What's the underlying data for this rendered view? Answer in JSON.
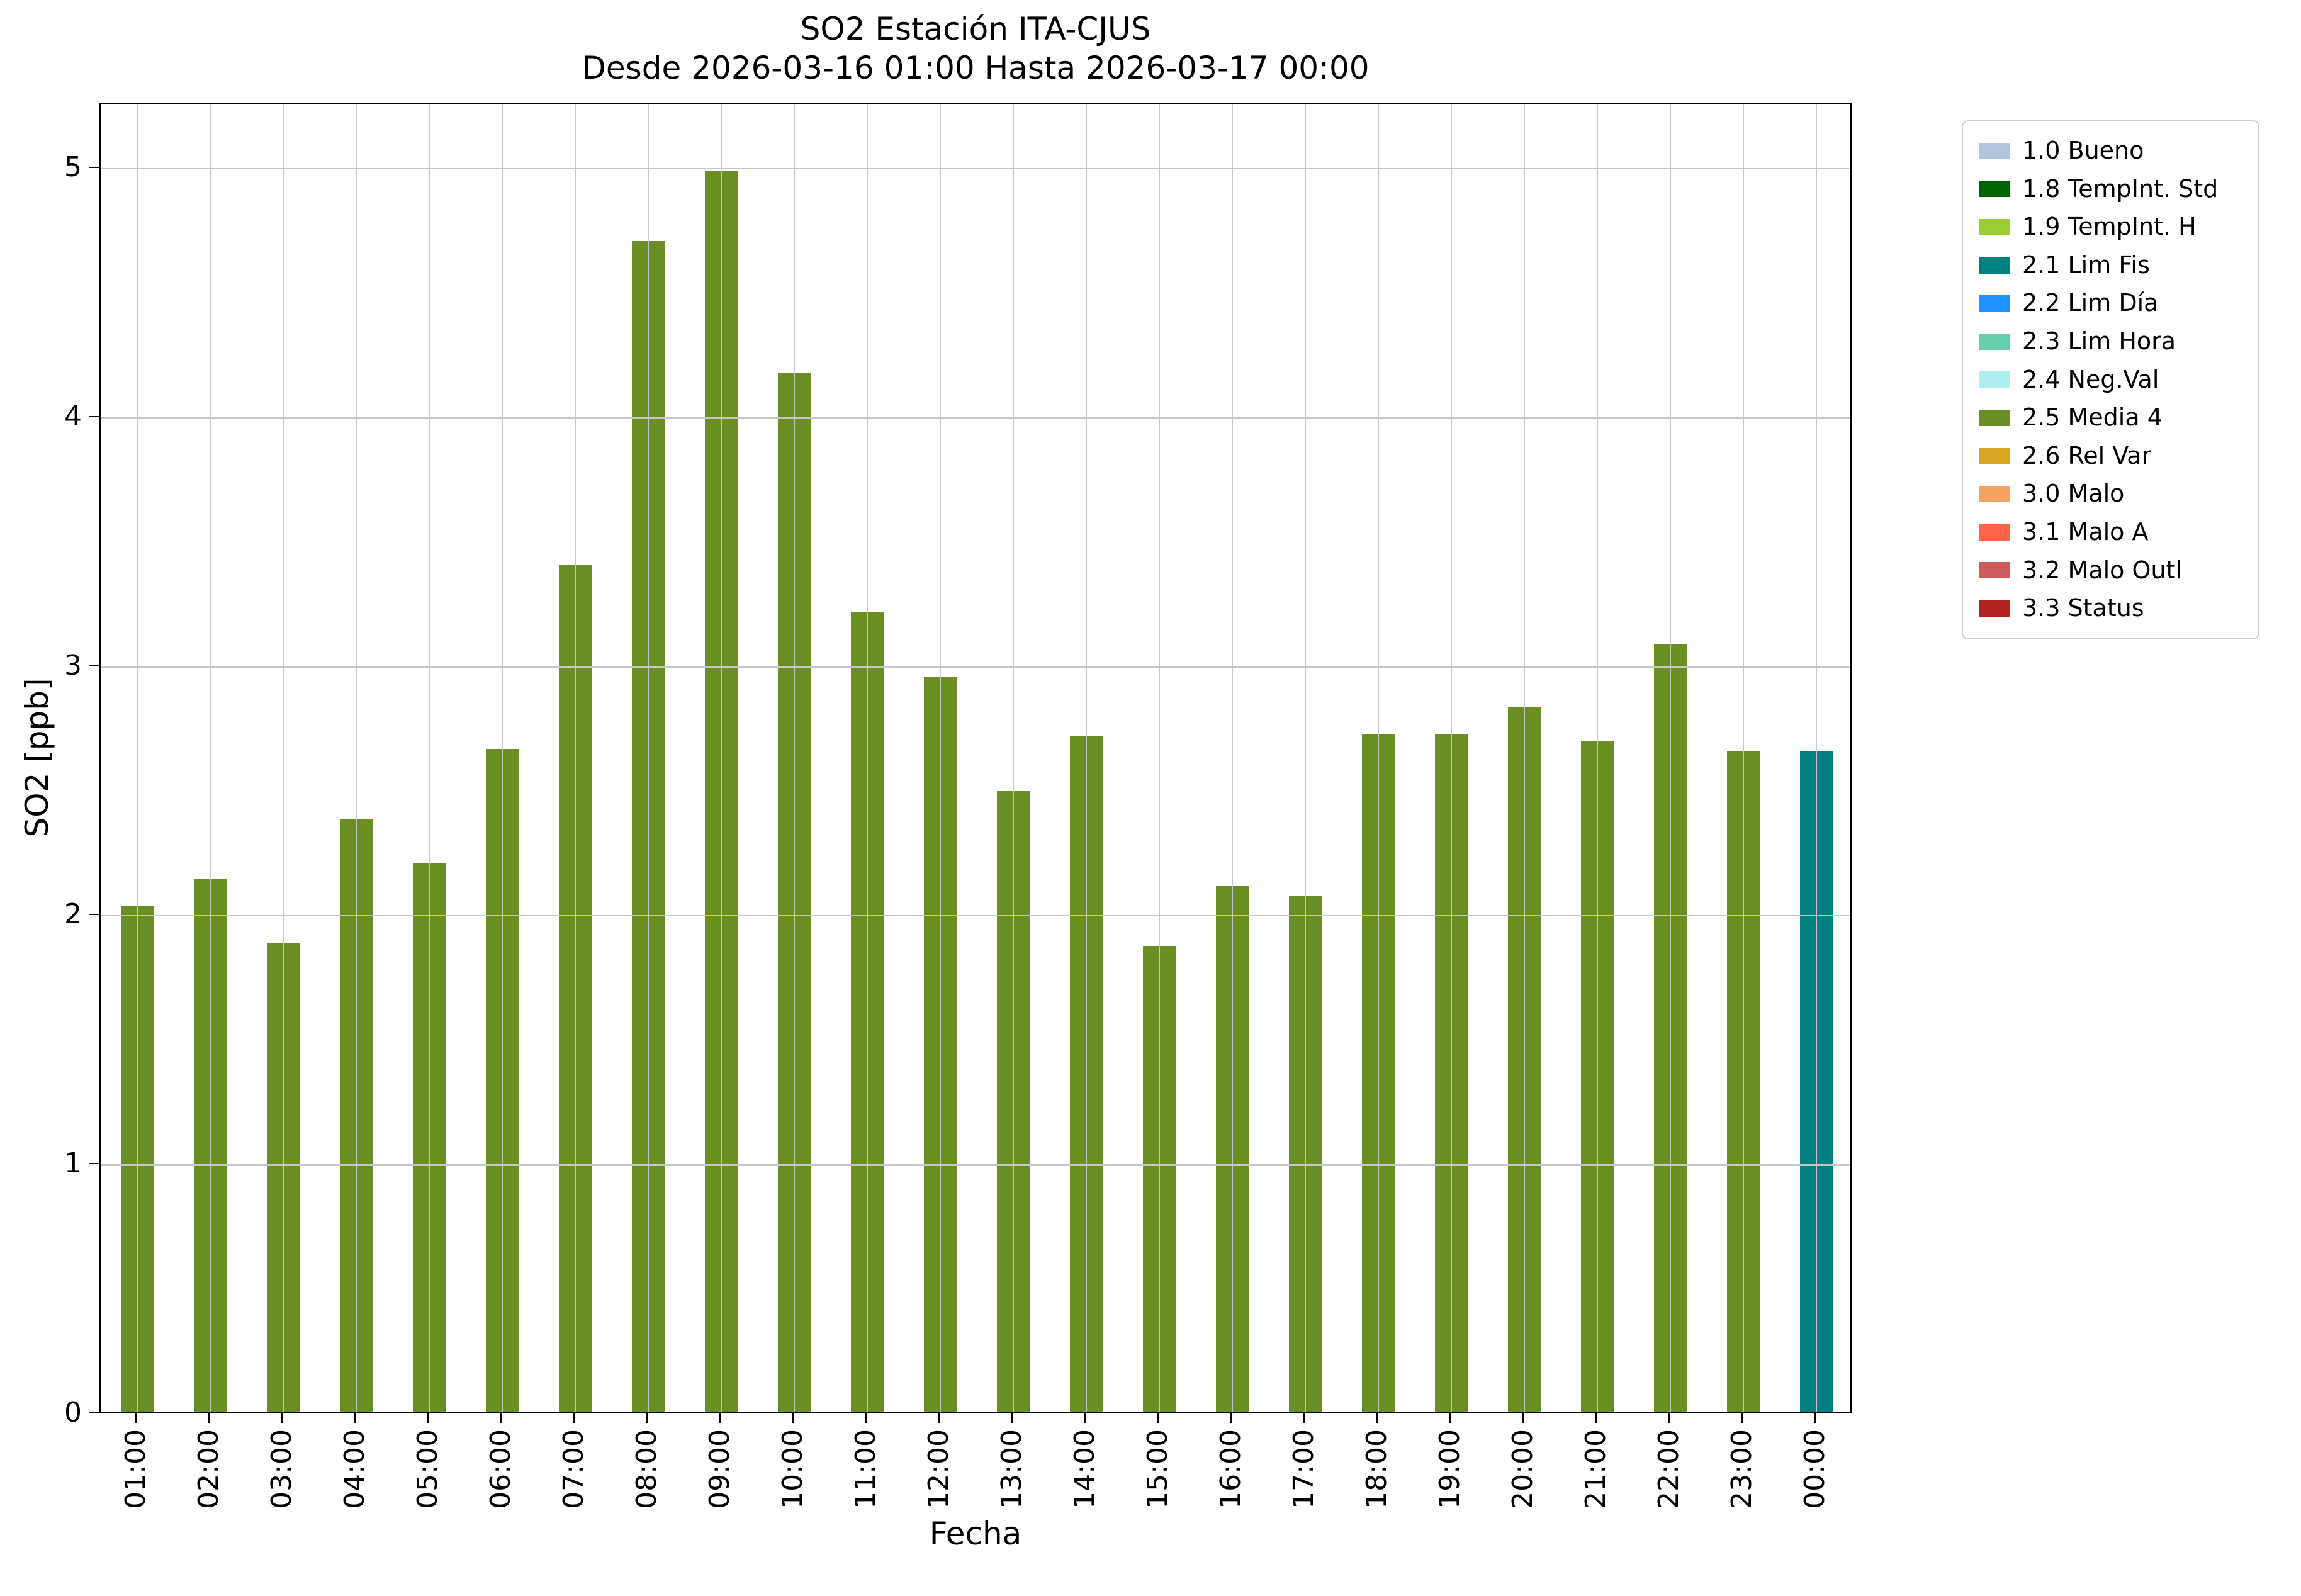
{
  "chart_data": {
    "type": "bar",
    "title": "SO2 Estación ITA-CJUS",
    "subtitle": "Desde 2026-03-16 01:00 Hasta 2026-03-17 00:00",
    "xlabel": "Fecha",
    "ylabel": "SO2 [ppb]",
    "ylim": [
      0,
      5.26
    ],
    "yticks": [
      0,
      1,
      2,
      3,
      4,
      5
    ],
    "grid": true,
    "categories": [
      "01:00",
      "02:00",
      "03:00",
      "04:00",
      "05:00",
      "06:00",
      "07:00",
      "08:00",
      "09:00",
      "10:00",
      "11:00",
      "12:00",
      "13:00",
      "14:00",
      "15:00",
      "16:00",
      "17:00",
      "18:00",
      "19:00",
      "20:00",
      "21:00",
      "22:00",
      "23:00",
      "00:00"
    ],
    "values": [
      2.03,
      2.14,
      1.88,
      2.38,
      2.2,
      2.66,
      3.4,
      4.7,
      4.98,
      4.17,
      3.21,
      2.95,
      2.49,
      2.71,
      1.87,
      2.11,
      2.07,
      2.72,
      2.72,
      2.83,
      2.69,
      3.08,
      2.65,
      2.65
    ],
    "bar_flags": [
      "2.5 Media 4",
      "2.5 Media 4",
      "2.5 Media 4",
      "2.5 Media 4",
      "2.5 Media 4",
      "2.5 Media 4",
      "2.5 Media 4",
      "2.5 Media 4",
      "2.5 Media 4",
      "2.5 Media 4",
      "2.5 Media 4",
      "2.5 Media 4",
      "2.5 Media 4",
      "2.5 Media 4",
      "2.5 Media 4",
      "2.5 Media 4",
      "2.5 Media 4",
      "2.5 Media 4",
      "2.5 Media 4",
      "2.5 Media 4",
      "2.5 Media 4",
      "2.5 Media 4",
      "2.5 Media 4",
      "2.1 Lim Fis"
    ],
    "flag_colors": {
      "2.5 Media 4": "#6b8e23",
      "2.1 Lim Fis": "#008080"
    },
    "colors": {
      "grid": "#c6c6c6",
      "spine": "#000000"
    },
    "legend": {
      "position": "outside-top-right",
      "entries": [
        {
          "label": "1.0 Bueno",
          "color": "#b0c4de"
        },
        {
          "label": "1.8 TempInt. Std",
          "color": "#006400"
        },
        {
          "label": "1.9 TempInt. H",
          "color": "#9acd32"
        },
        {
          "label": "2.1 Lim Fis",
          "color": "#008080"
        },
        {
          "label": "2.2 Lim Día",
          "color": "#1e90ff"
        },
        {
          "label": "2.3 Lim Hora",
          "color": "#66cdaa"
        },
        {
          "label": "2.4 Neg.Val",
          "color": "#afeeee"
        },
        {
          "label": "2.5 Media 4",
          "color": "#6b8e23"
        },
        {
          "label": "2.6 Rel Var",
          "color": "#daa520"
        },
        {
          "label": "3.0 Malo",
          "color": "#f4a460"
        },
        {
          "label": "3.1 Malo A",
          "color": "#ff6347"
        },
        {
          "label": "3.2 Malo Outl",
          "color": "#cd5c5c"
        },
        {
          "label": "3.3 Status",
          "color": "#b22222"
        }
      ]
    }
  }
}
